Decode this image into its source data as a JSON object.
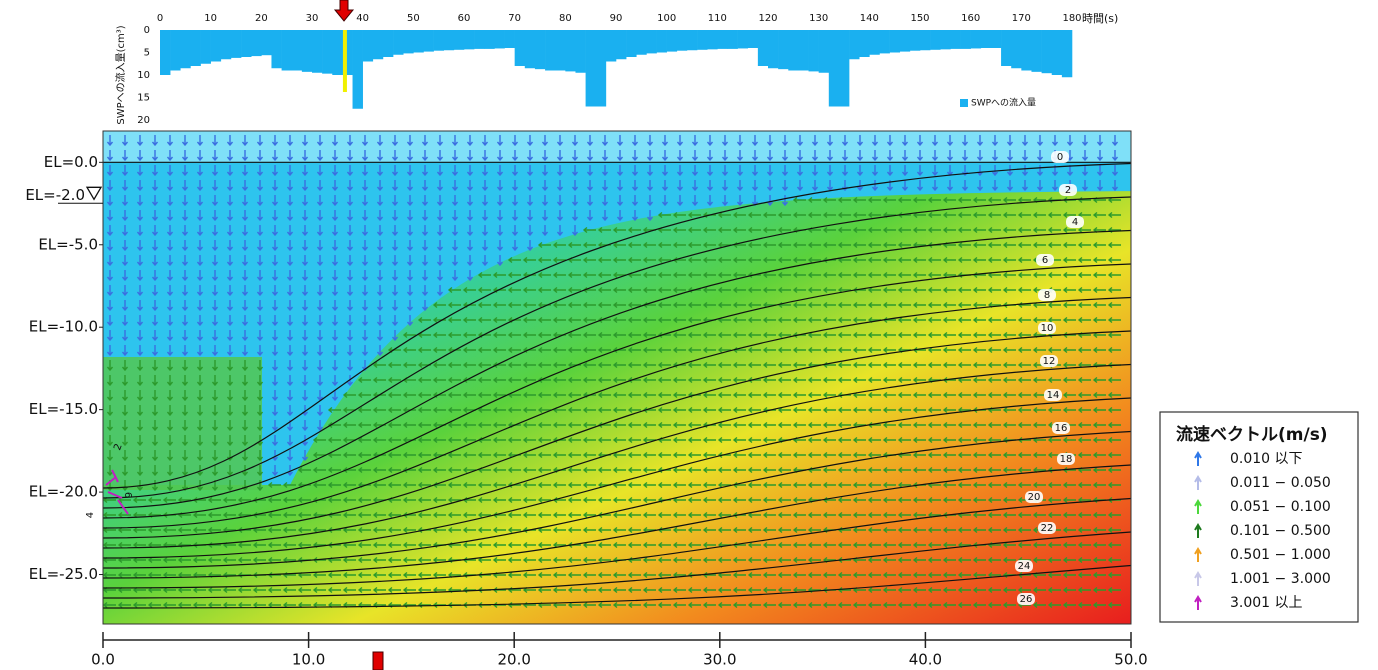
{
  "chart_data": [
    {
      "type": "bar",
      "ylabel": "SWPへの流入量(cm³)",
      "xlabel": "時間(s)",
      "legend": "SWPへの流入量",
      "color": "#1ab0f0",
      "marker_color": "#f0f000",
      "marker": 36.5,
      "xlim": [
        0,
        180
      ],
      "ylim": [
        0,
        20
      ],
      "xticks": [
        0,
        10,
        20,
        30,
        40,
        50,
        60,
        70,
        80,
        90,
        100,
        110,
        120,
        130,
        140,
        150,
        160,
        170,
        180
      ],
      "yticks": [
        0,
        5,
        10,
        15,
        20
      ],
      "x": [
        0,
        2,
        4,
        6,
        8,
        10,
        12,
        14,
        16,
        18,
        20,
        22,
        24,
        26,
        28,
        30,
        32,
        34,
        36,
        38,
        40,
        42,
        44,
        46,
        48,
        50,
        52,
        54,
        56,
        58,
        60,
        62,
        64,
        66,
        68,
        70,
        72,
        74,
        76,
        78,
        80,
        82,
        84,
        86,
        88,
        90,
        92,
        94,
        96,
        98,
        100,
        102,
        104,
        106,
        108,
        110,
        112,
        114,
        116,
        118,
        120,
        122,
        124,
        126,
        128,
        130,
        132,
        134,
        136,
        138,
        140,
        142,
        144,
        146,
        148,
        150,
        152,
        154,
        156,
        158,
        160,
        162,
        164,
        166,
        168,
        170,
        172,
        174,
        176,
        178
      ],
      "values": [
        10,
        9,
        8.5,
        8,
        7.5,
        7,
        6.5,
        6.2,
        6,
        5.8,
        5.6,
        8.5,
        9,
        9,
        9.3,
        9.5,
        9.7,
        10,
        10,
        17.5,
        7,
        6.5,
        6,
        5.5,
        5.2,
        5,
        4.8,
        4.6,
        4.5,
        4.4,
        4.3,
        4.2,
        4.2,
        4.1,
        4,
        8,
        8.5,
        8.7,
        9,
        9,
        9.2,
        9.5,
        17,
        17,
        7,
        6.5,
        6,
        5.5,
        5.2,
        5,
        4.8,
        4.6,
        4.5,
        4.4,
        4.3,
        4.2,
        4.2,
        4.1,
        4,
        8,
        8.5,
        8.7,
        9,
        9,
        9.2,
        9.5,
        17,
        17,
        6.5,
        6,
        5.5,
        5.2,
        5,
        4.8,
        4.6,
        4.5,
        4.4,
        4.3,
        4.2,
        4.2,
        4.1,
        4,
        4,
        8,
        8.5,
        9,
        9.3,
        9.6,
        10,
        10.5
      ]
    },
    {
      "type": "contour",
      "xlim": [
        0,
        50
      ],
      "ylim": [
        -28,
        1.9
      ],
      "xticks": [
        {
          "value": 0,
          "label": "0.0"
        },
        {
          "value": 10,
          "label": "10.0"
        },
        {
          "value": 20,
          "label": "20.0"
        },
        {
          "value": 30,
          "label": "30.0"
        },
        {
          "value": 40,
          "label": "40.0"
        },
        {
          "value": 50,
          "label": "50.0"
        }
      ],
      "yticks": [
        {
          "value": 0,
          "label": "EL=0.0"
        },
        {
          "value": -5,
          "label": "EL=-5.0"
        },
        {
          "value": -10,
          "label": "EL=-10.0"
        },
        {
          "value": -15,
          "label": "EL=-15.0"
        },
        {
          "value": -20,
          "label": "EL=-20.0"
        },
        {
          "value": -25,
          "label": "EL=-25.0"
        }
      ],
      "water_level": {
        "value": -2,
        "label": "EL=-2.0"
      },
      "contour_levels": [
        0,
        2,
        4,
        6,
        8,
        10,
        12,
        14,
        16,
        18,
        20,
        22,
        24,
        26
      ],
      "minor_contour_labels": [
        2,
        6,
        4
      ],
      "legend": {
        "title": "流速ベクトル(m/s)",
        "items": [
          {
            "label": "0.010  以下",
            "color": "#2f78e8"
          },
          {
            "label": "0.011 − 0.050",
            "color": "#b4bce8"
          },
          {
            "label": "0.051 − 0.100",
            "color": "#4cd83c"
          },
          {
            "label": "0.101 − 0.500",
            "color": "#1e7a1e"
          },
          {
            "label": "0.501 − 1.000",
            "color": "#f0a020"
          },
          {
            "label": "1.001 − 3.000",
            "color": "#c8c8e8"
          },
          {
            "label": "3.001  以上",
            "color": "#c020c0"
          }
        ]
      }
    }
  ]
}
